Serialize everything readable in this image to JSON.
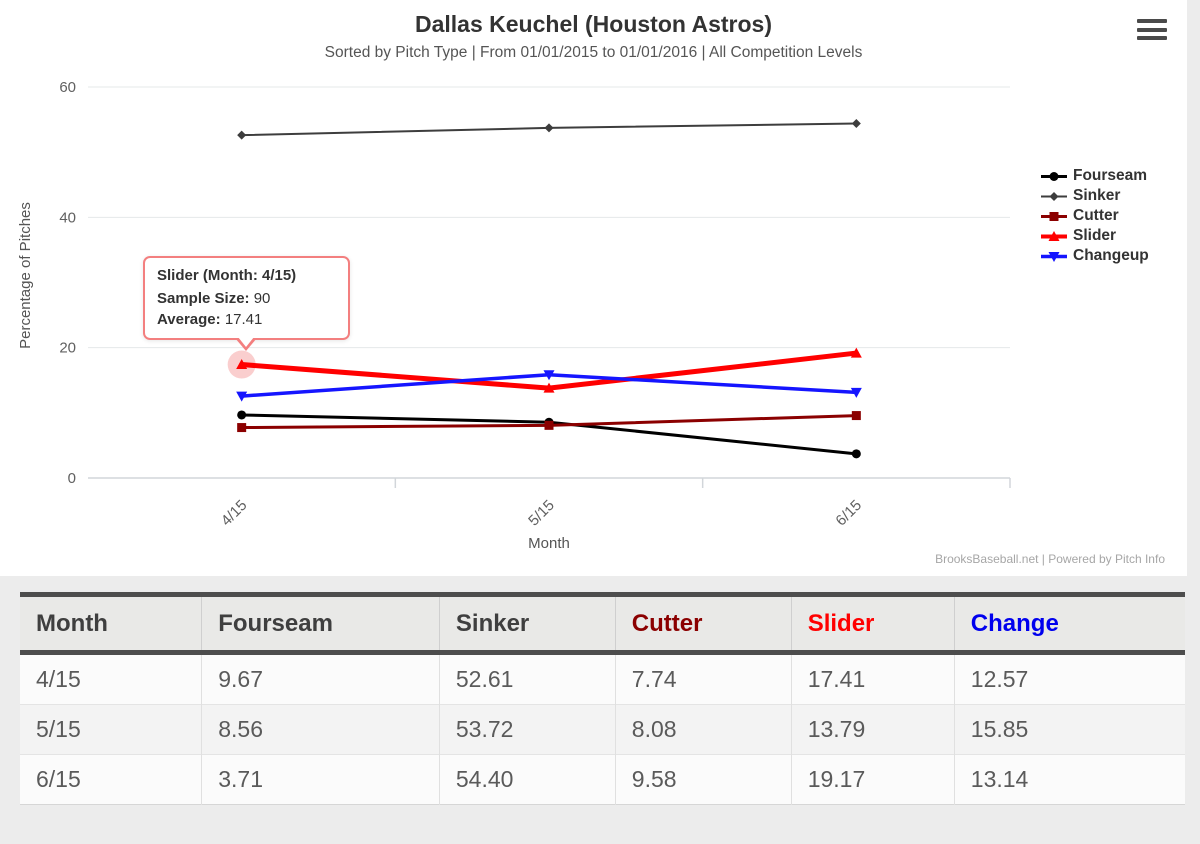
{
  "header": {
    "title": "Dallas Keuchel (Houston Astros)",
    "subtitle": "Sorted by Pitch Type | From 01/01/2015 to 01/01/2016 | All Competition Levels"
  },
  "chart_data": {
    "type": "line",
    "title": "Dallas Keuchel (Houston Astros)",
    "subtitle": "Sorted by Pitch Type | From 01/01/2015 to 01/01/2016 | All Competition Levels",
    "categories": [
      "4/15",
      "5/15",
      "6/15"
    ],
    "series": [
      {
        "name": "Fourseam",
        "color": "#000000",
        "marker": "circle",
        "line_width": 3,
        "values": [
          9.67,
          8.56,
          3.71
        ]
      },
      {
        "name": "Sinker",
        "color": "#3d3d3d",
        "marker": "diamond",
        "line_width": 2,
        "values": [
          52.61,
          53.72,
          54.4
        ]
      },
      {
        "name": "Cutter",
        "color": "#8b0000",
        "marker": "square",
        "line_width": 3,
        "values": [
          7.74,
          8.08,
          9.58
        ]
      },
      {
        "name": "Slider",
        "color": "#ff0000",
        "marker": "triangle",
        "line_width": 5,
        "values": [
          17.41,
          13.79,
          19.17
        ]
      },
      {
        "name": "Changeup",
        "color": "#1515ff",
        "marker": "triangle-down",
        "line_width": 3.5,
        "values": [
          12.57,
          15.85,
          13.14
        ]
      }
    ],
    "xlabel": "Month",
    "ylabel": "Percentage of Pitches",
    "ylim": [
      0,
      60
    ],
    "yticks": [
      0,
      20,
      40,
      60
    ],
    "grid": true,
    "legend_position": "right"
  },
  "tooltip": {
    "title": "Slider (Month: 4/15)",
    "rows": [
      {
        "label": "Sample Size:",
        "value": "90"
      },
      {
        "label": "Average:",
        "value": "17.41"
      }
    ],
    "highlight": {
      "series": "Slider",
      "category_index": 0
    }
  },
  "credit": "BrooksBaseball.net | Powered by Pitch Info",
  "table": {
    "columns": [
      {
        "label": "Month",
        "color": "#3f3f3f"
      },
      {
        "label": "Fourseam",
        "color": "#3f3f3f"
      },
      {
        "label": "Sinker",
        "color": "#3f3f3f"
      },
      {
        "label": "Cutter",
        "color": "#8b0000"
      },
      {
        "label": "Slider",
        "color": "#ff0000"
      },
      {
        "label": "Change",
        "color": "#0000ee"
      }
    ],
    "rows": [
      [
        "4/15",
        "9.67",
        "52.61",
        "7.74",
        "17.41",
        "12.57"
      ],
      [
        "5/15",
        "8.56",
        "53.72",
        "8.08",
        "13.79",
        "15.85"
      ],
      [
        "6/15",
        "3.71",
        "54.40",
        "9.58",
        "19.17",
        "13.14"
      ]
    ]
  }
}
